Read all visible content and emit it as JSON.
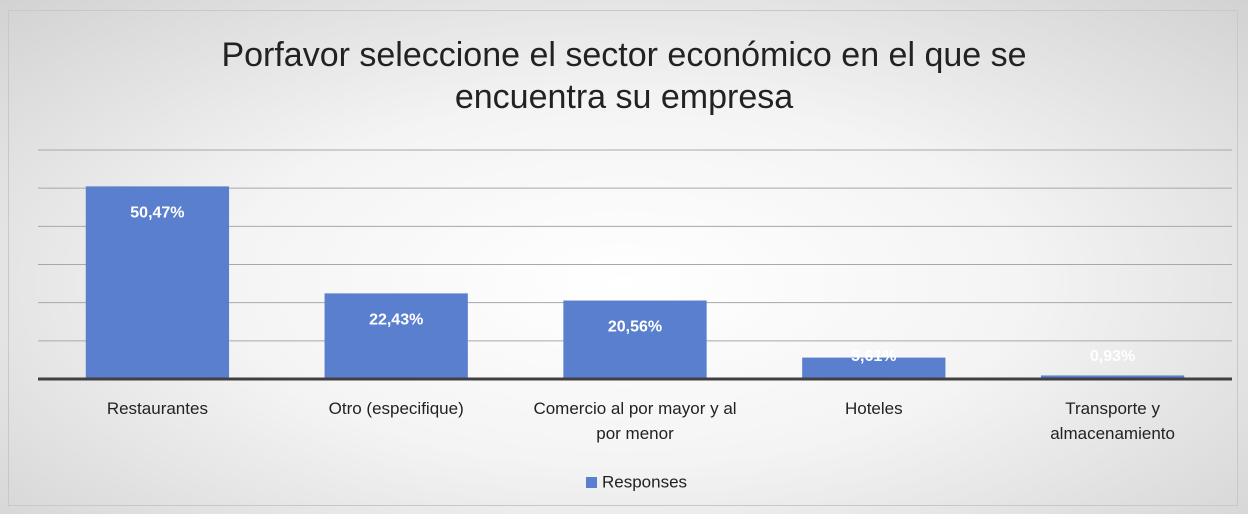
{
  "chart_data": {
    "type": "bar",
    "title": "Porfavor seleccione el sector económico en el que se encuentra su empresa",
    "categories": [
      "Restaurantes",
      "Otro (especifique)",
      "Comercio al por mayor y al por menor",
      "Hoteles",
      "Transporte y almacenamiento"
    ],
    "series": [
      {
        "name": "Responses",
        "color": "#5b7fcf",
        "values": [
          50.47,
          22.43,
          20.56,
          5.61,
          0.93
        ],
        "value_labels": [
          "50,47%",
          "22,43%",
          "20,56%",
          "5,61%",
          "0,93%"
        ]
      }
    ],
    "ylim": [
      0,
      60
    ],
    "yticks": [
      0,
      10,
      20,
      30,
      40,
      50,
      60
    ],
    "grid": true,
    "legend": "bottom"
  }
}
